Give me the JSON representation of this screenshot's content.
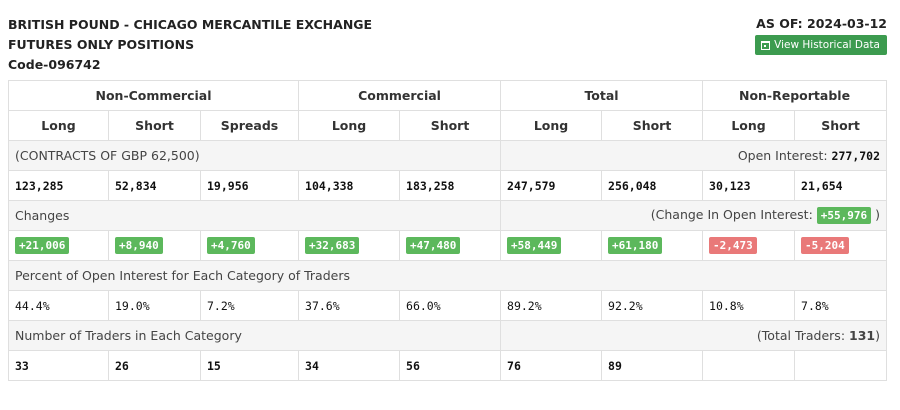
{
  "header": {
    "title_line1": "BRITISH POUND - CHICAGO MERCANTILE EXCHANGE",
    "title_line2": "FUTURES ONLY POSITIONS",
    "code": "Code-096742",
    "as_of": "AS OF: 2024-03-12",
    "history_button": "View Historical Data"
  },
  "groups": [
    "Non-Commercial",
    "Commercial",
    "Total",
    "Non-Reportable"
  ],
  "subheaders": [
    "Long",
    "Short",
    "Spreads",
    "Long",
    "Short",
    "Long",
    "Short",
    "Long",
    "Short"
  ],
  "contracts": {
    "label": "(CONTRACTS OF GBP 62,500)",
    "oi_label": "Open Interest:",
    "oi_value": "277,702",
    "values": [
      "123,285",
      "52,834",
      "19,956",
      "104,338",
      "183,258",
      "247,579",
      "256,048",
      "30,123",
      "21,654"
    ]
  },
  "changes": {
    "label": "Changes",
    "oi_label_prefix": "(Change In Open Interest:",
    "oi_value": "+55,976",
    "oi_label_suffix": ")",
    "values": [
      "+21,006",
      "+8,940",
      "+4,760",
      "+32,683",
      "+47,480",
      "+58,449",
      "+61,180",
      "-2,473",
      "-5,204"
    ]
  },
  "percent": {
    "label": "Percent of Open Interest for Each Category of Traders",
    "values": [
      "44.4%",
      "19.0%",
      "7.2%",
      "37.6%",
      "66.0%",
      "89.2%",
      "92.2%",
      "10.8%",
      "7.8%"
    ]
  },
  "traders": {
    "label": "Number of Traders in Each Category",
    "total_prefix": "(Total Traders:",
    "total_value": "131",
    "total_suffix": ")",
    "values": [
      "33",
      "26",
      "15",
      "34",
      "56",
      "76",
      "89",
      "",
      ""
    ]
  },
  "colors": {
    "positive": "#5cb85c",
    "negative": "#e97979",
    "button": "#3c9b4f"
  }
}
